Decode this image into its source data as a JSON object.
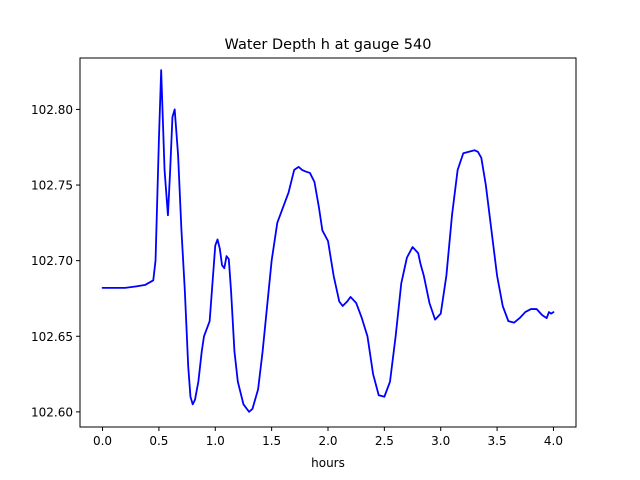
{
  "chart_data": {
    "type": "line",
    "title": "Water Depth h at gauge 540",
    "xlabel": "hours",
    "ylabel": "",
    "xlim": [
      -0.2,
      4.2
    ],
    "ylim": [
      102.59,
      102.834
    ],
    "xticks": [
      0.0,
      0.5,
      1.0,
      1.5,
      2.0,
      2.5,
      3.0,
      3.5,
      4.0
    ],
    "xtick_labels": [
      "0.0",
      "0.5",
      "1.0",
      "1.5",
      "2.0",
      "2.5",
      "3.0",
      "3.5",
      "4.0"
    ],
    "yticks": [
      102.6,
      102.65,
      102.7,
      102.75,
      102.8
    ],
    "ytick_labels": [
      "102.60",
      "102.65",
      "102.70",
      "102.75",
      "102.80"
    ],
    "grid": false,
    "series": [
      {
        "color": "#0000ff",
        "x": [
          0.0,
          0.1,
          0.2,
          0.3,
          0.38,
          0.45,
          0.47,
          0.5,
          0.52,
          0.55,
          0.58,
          0.6,
          0.62,
          0.64,
          0.67,
          0.7,
          0.73,
          0.76,
          0.78,
          0.8,
          0.82,
          0.85,
          0.88,
          0.9,
          0.95,
          0.97,
          1.0,
          1.02,
          1.04,
          1.06,
          1.08,
          1.1,
          1.12,
          1.14,
          1.17,
          1.2,
          1.25,
          1.3,
          1.33,
          1.38,
          1.42,
          1.46,
          1.5,
          1.55,
          1.6,
          1.65,
          1.7,
          1.74,
          1.77,
          1.8,
          1.84,
          1.88,
          1.92,
          1.95,
          2.0,
          2.05,
          2.1,
          2.13,
          2.17,
          2.2,
          2.25,
          2.3,
          2.35,
          2.4,
          2.45,
          2.5,
          2.55,
          2.6,
          2.65,
          2.7,
          2.75,
          2.8,
          2.82,
          2.85,
          2.9,
          2.95,
          3.0,
          3.05,
          3.1,
          3.15,
          3.2,
          3.25,
          3.3,
          3.33,
          3.36,
          3.4,
          3.45,
          3.5,
          3.55,
          3.6,
          3.65,
          3.7,
          3.75,
          3.8,
          3.85,
          3.9,
          3.94,
          3.96,
          3.98,
          4.0
        ],
        "y": [
          102.682,
          102.682,
          102.682,
          102.683,
          102.684,
          102.687,
          102.7,
          102.78,
          102.826,
          102.76,
          102.73,
          102.76,
          102.795,
          102.8,
          102.77,
          102.72,
          102.68,
          102.63,
          102.61,
          102.605,
          102.608,
          102.62,
          102.64,
          102.65,
          102.66,
          102.68,
          102.71,
          102.714,
          102.708,
          102.697,
          102.695,
          102.703,
          102.701,
          102.68,
          102.64,
          102.62,
          102.605,
          102.6,
          102.602,
          102.615,
          102.64,
          102.67,
          102.7,
          102.725,
          102.735,
          102.745,
          102.76,
          102.762,
          102.76,
          102.759,
          102.758,
          102.752,
          102.735,
          102.72,
          102.713,
          102.69,
          102.673,
          102.67,
          102.673,
          102.676,
          102.672,
          102.662,
          102.65,
          102.625,
          102.611,
          102.61,
          102.62,
          102.65,
          102.685,
          102.702,
          102.709,
          102.705,
          102.698,
          102.69,
          102.672,
          102.661,
          102.665,
          102.69,
          102.73,
          102.76,
          102.771,
          102.772,
          102.773,
          102.772,
          102.768,
          102.75,
          102.72,
          102.69,
          102.67,
          102.66,
          102.659,
          102.662,
          102.666,
          102.668,
          102.668,
          102.664,
          102.662,
          102.666,
          102.665,
          102.666
        ]
      }
    ]
  }
}
